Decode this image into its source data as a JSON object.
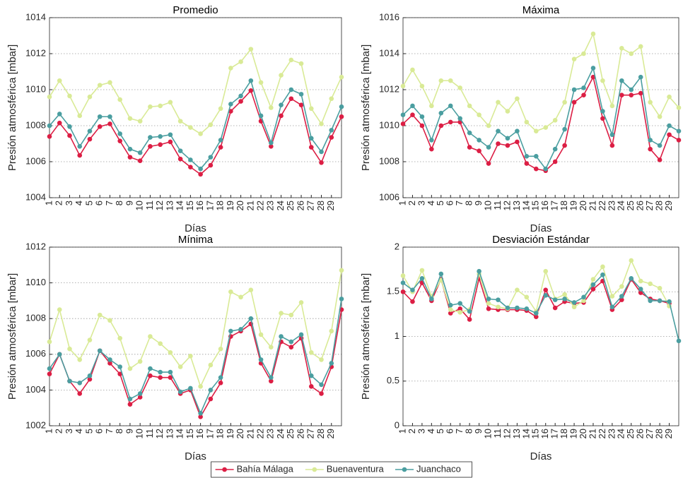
{
  "chart_data": [
    {
      "type": "line",
      "title": "Promedio",
      "xlabel": "Días",
      "ylabel": "Presión atmosférica [mbar]",
      "x": [
        1,
        2,
        3,
        4,
        5,
        6,
        7,
        8,
        9,
        10,
        11,
        12,
        13,
        14,
        15,
        16,
        17,
        18,
        19,
        20,
        21,
        22,
        23,
        24,
        25,
        26,
        27,
        28,
        29,
        30
      ],
      "xlim": [
        1,
        30
      ],
      "xticks": [
        1,
        2,
        3,
        4,
        5,
        6,
        7,
        8,
        9,
        10,
        11,
        12,
        13,
        14,
        15,
        16,
        17,
        18,
        19,
        20,
        21,
        22,
        23,
        24,
        25,
        26,
        27,
        28,
        29
      ],
      "ylim": [
        1004,
        1014
      ],
      "yticks": [
        1004,
        1006,
        1008,
        1010,
        1012,
        1014
      ],
      "grid": true,
      "legend": "bottom",
      "series": [
        {
          "name": "Bahía Málaga",
          "color": "#dc1e44",
          "values": [
            1007.4,
            1008.15,
            1007.45,
            1006.35,
            1007.25,
            1007.95,
            1008.1,
            1007.15,
            1006.25,
            1006.05,
            1006.85,
            1006.95,
            1007.1,
            1006.15,
            1005.7,
            1005.3,
            1005.8,
            1006.8,
            1008.8,
            1009.35,
            1009.95,
            1008.25,
            1006.85,
            1008.55,
            1009.5,
            1009.15,
            1006.8,
            1005.95,
            1007.35,
            1008.5
          ]
        },
        {
          "name": "Buenaventura",
          "color": "#d9ea96",
          "values": [
            1009.6,
            1010.5,
            1009.65,
            1008.55,
            1009.6,
            1010.25,
            1010.4,
            1009.45,
            1008.4,
            1008.25,
            1009.05,
            1009.1,
            1009.3,
            1008.25,
            1007.9,
            1007.55,
            1008.05,
            1008.95,
            1011.2,
            1011.55,
            1012.25,
            1010.4,
            1009.0,
            1010.8,
            1011.65,
            1011.45,
            1008.95,
            1008.1,
            1009.5,
            1010.7
          ]
        },
        {
          "name": "Juanchaco",
          "color": "#4a9ea0",
          "values": [
            1008.0,
            1008.65,
            1007.95,
            1006.85,
            1007.7,
            1008.5,
            1008.5,
            1007.55,
            1006.7,
            1006.5,
            1007.35,
            1007.4,
            1007.5,
            1006.6,
            1006.1,
            1005.6,
            1006.25,
            1007.2,
            1009.2,
            1009.65,
            1010.5,
            1008.55,
            1007.05,
            1009.15,
            1010.0,
            1009.75,
            1007.3,
            1006.55,
            1007.75,
            1009.05
          ]
        }
      ]
    },
    {
      "type": "line",
      "title": "Máxima",
      "xlabel": "Días",
      "ylabel": "Presión atmosférica [mbar]",
      "x": [
        1,
        2,
        3,
        4,
        5,
        6,
        7,
        8,
        9,
        10,
        11,
        12,
        13,
        14,
        15,
        16,
        17,
        18,
        19,
        20,
        21,
        22,
        23,
        24,
        25,
        26,
        27,
        28,
        29,
        30
      ],
      "xlim": [
        1,
        30
      ],
      "xticks": [
        1,
        2,
        3,
        4,
        5,
        6,
        7,
        8,
        9,
        10,
        11,
        12,
        13,
        14,
        15,
        16,
        17,
        18,
        19,
        20,
        21,
        22,
        23,
        24,
        25,
        26,
        27,
        28,
        29
      ],
      "ylim": [
        1006,
        1016
      ],
      "yticks": [
        1006,
        1008,
        1010,
        1012,
        1014,
        1016
      ],
      "grid": true,
      "series": [
        {
          "name": "Bahía Málaga",
          "color": "#dc1e44",
          "values": [
            1010.1,
            1010.6,
            1010.0,
            1008.7,
            1010.0,
            1010.2,
            1010.2,
            1008.8,
            1008.6,
            1007.9,
            1009.0,
            1008.9,
            1009.1,
            1007.9,
            1007.6,
            1007.5,
            1008.0,
            1008.9,
            1011.3,
            1011.7,
            1012.7,
            1010.4,
            1008.9,
            1011.7,
            1011.7,
            1011.8,
            1008.7,
            1008.1,
            1009.5,
            1009.2
          ]
        },
        {
          "name": "Buenaventura",
          "color": "#d9ea96",
          "values": [
            1012.2,
            1013.1,
            1012.2,
            1011.1,
            1012.5,
            1012.5,
            1012.1,
            1011.1,
            1010.6,
            1010.0,
            1011.3,
            1010.8,
            1011.5,
            1010.2,
            1009.7,
            1009.9,
            1010.3,
            1011.3,
            1013.7,
            1014.0,
            1015.1,
            1012.5,
            1011.1,
            1014.3,
            1014.0,
            1014.4,
            1011.3,
            1010.5,
            1011.6,
            1011.0
          ]
        },
        {
          "name": "Juanchaco",
          "color": "#4a9ea0",
          "values": [
            1010.6,
            1011.1,
            1010.5,
            1009.2,
            1010.7,
            1011.1,
            1010.4,
            1009.6,
            1009.2,
            1008.8,
            1009.7,
            1009.3,
            1009.7,
            1008.3,
            1008.3,
            1007.6,
            1008.7,
            1009.8,
            1012.0,
            1012.1,
            1013.2,
            1010.8,
            1009.5,
            1012.5,
            1012.0,
            1012.7,
            1009.2,
            1008.9,
            1010.0,
            1009.7
          ]
        }
      ]
    },
    {
      "type": "line",
      "title": "Mínima",
      "xlabel": "Días",
      "ylabel": "Presión atmosférica [mbar]",
      "x": [
        1,
        2,
        3,
        4,
        5,
        6,
        7,
        8,
        9,
        10,
        11,
        12,
        13,
        14,
        15,
        16,
        17,
        18,
        19,
        20,
        21,
        22,
        23,
        24,
        25,
        26,
        27,
        28,
        29,
        30
      ],
      "xlim": [
        1,
        30
      ],
      "xticks": [
        1,
        2,
        3,
        4,
        5,
        6,
        7,
        8,
        9,
        10,
        11,
        12,
        13,
        14,
        15,
        16,
        17,
        18,
        19,
        20,
        21,
        22,
        23,
        24,
        25,
        26,
        27,
        28,
        29
      ],
      "ylim": [
        1002,
        1012
      ],
      "yticks": [
        1002,
        1004,
        1006,
        1008,
        1010,
        1012
      ],
      "grid": true,
      "series": [
        {
          "name": "Bahía Málaga",
          "color": "#dc1e44",
          "values": [
            1004.9,
            1006.0,
            1004.5,
            1003.8,
            1004.6,
            1006.2,
            1005.5,
            1004.9,
            1003.2,
            1003.6,
            1004.8,
            1004.7,
            1004.7,
            1003.8,
            1004.0,
            1002.5,
            1003.5,
            1004.4,
            1007.0,
            1007.3,
            1007.7,
            1005.5,
            1004.5,
            1006.7,
            1006.4,
            1006.9,
            1004.2,
            1003.8,
            1005.3,
            1008.5
          ]
        },
        {
          "name": "Buenaventura",
          "color": "#d9ea96",
          "values": [
            1006.7,
            1008.5,
            1006.3,
            1005.7,
            1006.8,
            1008.2,
            1007.9,
            1006.9,
            1005.2,
            1005.6,
            1007.0,
            1006.6,
            1006.1,
            1005.3,
            1005.9,
            1004.2,
            1005.4,
            1006.3,
            1009.5,
            1009.2,
            1009.6,
            1007.1,
            1006.4,
            1008.3,
            1008.2,
            1008.9,
            1006.1,
            1005.7,
            1007.3,
            1010.7
          ]
        },
        {
          "name": "Juanchaco",
          "color": "#4a9ea0",
          "values": [
            1005.2,
            1006.0,
            1004.5,
            1004.4,
            1004.8,
            1006.2,
            1005.7,
            1005.3,
            1003.5,
            1003.8,
            1005.2,
            1005.0,
            1005.0,
            1003.9,
            1004.1,
            1002.7,
            1004.0,
            1004.7,
            1007.3,
            1007.4,
            1008.0,
            1005.7,
            1004.7,
            1007.0,
            1006.7,
            1007.1,
            1004.8,
            1004.3,
            1005.5,
            1009.1
          ]
        }
      ]
    },
    {
      "type": "line",
      "title": "Desviación Estándar",
      "xlabel": "Días",
      "ylabel": "Presión atmosférica [mbar]",
      "x": [
        1,
        2,
        3,
        4,
        5,
        6,
        7,
        8,
        9,
        10,
        11,
        12,
        13,
        14,
        15,
        16,
        17,
        18,
        19,
        20,
        21,
        22,
        23,
        24,
        25,
        26,
        27,
        28,
        29,
        30
      ],
      "xlim": [
        1,
        30
      ],
      "xticks": [
        1,
        2,
        3,
        4,
        5,
        6,
        7,
        8,
        9,
        10,
        11,
        12,
        13,
        14,
        15,
        16,
        17,
        18,
        19,
        20,
        21,
        22,
        23,
        24,
        25,
        26,
        27,
        28,
        29
      ],
      "ylim": [
        0,
        2
      ],
      "yticks": [
        0,
        0.5,
        1,
        1.5,
        2
      ],
      "grid": true,
      "series": [
        {
          "name": "Bahía Málaga",
          "color": "#dc1e44",
          "values": [
            1.5,
            1.39,
            1.6,
            1.4,
            1.64,
            1.26,
            1.31,
            1.19,
            1.65,
            1.31,
            1.3,
            1.3,
            1.3,
            1.29,
            1.22,
            1.52,
            1.32,
            1.39,
            1.37,
            1.38,
            1.53,
            1.62,
            1.3,
            1.41,
            1.64,
            1.49,
            1.42,
            1.4,
            1.37,
            null
          ]
        },
        {
          "name": "Buenaventura",
          "color": "#d9ea96",
          "values": [
            1.68,
            1.5,
            1.74,
            1.45,
            1.63,
            1.3,
            1.27,
            1.3,
            1.7,
            1.37,
            1.33,
            1.31,
            1.52,
            1.44,
            1.28,
            1.73,
            1.42,
            1.47,
            1.33,
            1.4,
            1.64,
            1.78,
            1.45,
            1.56,
            1.85,
            1.62,
            1.59,
            1.54,
            1.34,
            null
          ]
        },
        {
          "name": "Juanchaco",
          "color": "#4a9ea0",
          "values": [
            1.6,
            1.52,
            1.65,
            1.42,
            1.7,
            1.35,
            1.37,
            1.28,
            1.73,
            1.42,
            1.41,
            1.32,
            1.32,
            1.31,
            1.26,
            1.46,
            1.41,
            1.42,
            1.38,
            1.44,
            1.58,
            1.69,
            1.33,
            1.45,
            1.65,
            1.53,
            1.4,
            1.4,
            1.39,
            0.95
          ]
        }
      ]
    }
  ]
}
